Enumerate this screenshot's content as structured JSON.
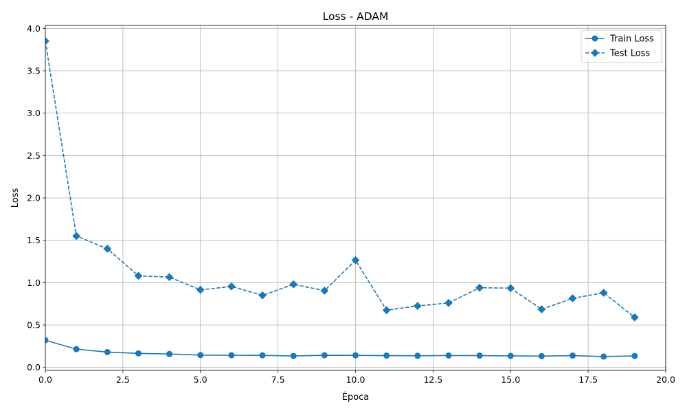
{
  "chart_data": {
    "type": "line",
    "title": "Loss - ADAM",
    "xlabel": "Época",
    "ylabel": "Loss",
    "xlim": [
      0,
      20
    ],
    "ylim": [
      -0.035,
      4.035
    ],
    "x_ticks": [
      "0.0",
      "2.5",
      "5.0",
      "7.5",
      "10.0",
      "12.5",
      "15.0",
      "17.5",
      "20.0"
    ],
    "y_ticks": [
      "0.0",
      "0.5",
      "1.0",
      "1.5",
      "2.0",
      "2.5",
      "3.0",
      "3.5",
      "4.0"
    ],
    "grid": true,
    "legend_position": "top-right",
    "series_color": "#1f77b4",
    "series": [
      {
        "name": "Train Loss",
        "line_style": "solid",
        "marker": "circle",
        "x": [
          0,
          1,
          2,
          3,
          4,
          5,
          6,
          7,
          8,
          9,
          10,
          11,
          12,
          13,
          14,
          15,
          16,
          17,
          18,
          19
        ],
        "values": [
          0.32,
          0.215,
          0.18,
          0.165,
          0.158,
          0.145,
          0.143,
          0.142,
          0.135,
          0.143,
          0.142,
          0.139,
          0.137,
          0.14,
          0.139,
          0.136,
          0.133,
          0.139,
          0.128,
          0.135
        ]
      },
      {
        "name": "Test Loss",
        "line_style": "dashed",
        "marker": "diamond",
        "x": [
          0,
          1,
          2,
          3,
          4,
          5,
          6,
          7,
          8,
          9,
          10,
          11,
          12,
          13,
          14,
          15,
          16,
          17,
          18,
          19
        ],
        "values": [
          3.85,
          1.55,
          1.4,
          1.08,
          1.065,
          0.915,
          0.955,
          0.85,
          0.98,
          0.905,
          1.265,
          0.675,
          0.725,
          0.76,
          0.94,
          0.935,
          0.685,
          0.815,
          0.88,
          0.59
        ]
      }
    ]
  }
}
